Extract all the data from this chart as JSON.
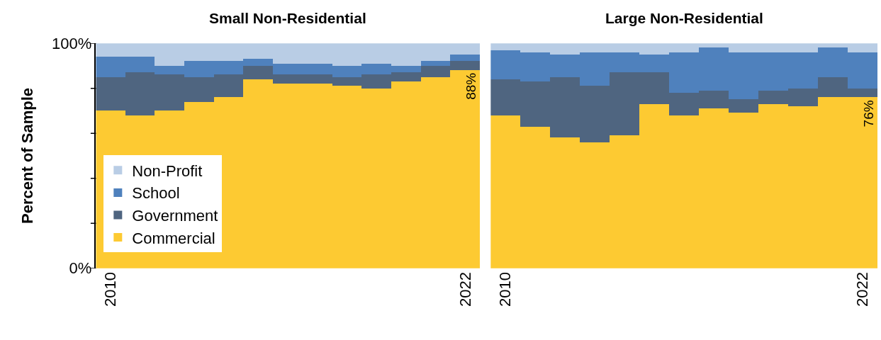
{
  "chart_data": [
    {
      "type": "bar",
      "stacked": true,
      "title": "Small Non-Residential",
      "ylabel": "Percent of Sample",
      "categories": [
        "2010",
        null,
        null,
        null,
        null,
        null,
        null,
        null,
        null,
        null,
        null,
        null,
        "2022"
      ],
      "ylim": [
        0,
        100
      ],
      "yticks": [
        {
          "value": 0,
          "label": "0%"
        },
        {
          "value": 20,
          "label": null
        },
        {
          "value": 40,
          "label": null
        },
        {
          "value": 60,
          "label": null
        },
        {
          "value": 80,
          "label": null
        },
        {
          "value": 100,
          "label": "100%"
        }
      ],
      "series": [
        {
          "name": "Commercial",
          "color": "#fdca32",
          "values": [
            70,
            68,
            70,
            74,
            76,
            84,
            82,
            82,
            81,
            80,
            83,
            85,
            88
          ]
        },
        {
          "name": "Government",
          "color": "#4f6580",
          "values": [
            15,
            19,
            16,
            11,
            10,
            6,
            4,
            4,
            4,
            6,
            4,
            5,
            4
          ]
        },
        {
          "name": "School",
          "color": "#4f81bd",
          "values": [
            9,
            7,
            4,
            7,
            6,
            3,
            5,
            5,
            5,
            5,
            3,
            2,
            3
          ]
        },
        {
          "name": "Non-Profit",
          "color": "#b9cde5",
          "values": [
            6,
            6,
            10,
            8,
            8,
            7,
            9,
            9,
            10,
            9,
            10,
            8,
            5
          ]
        }
      ],
      "annotations": [
        {
          "text": "88%",
          "x": "2022",
          "y": 88
        }
      ],
      "legend": "bottom left"
    },
    {
      "type": "bar",
      "stacked": true,
      "title": "Large Non-Residential",
      "categories": [
        "2010",
        null,
        null,
        null,
        null,
        null,
        null,
        null,
        null,
        null,
        null,
        null,
        "2022"
      ],
      "ylim": [
        0,
        100
      ],
      "series": [
        {
          "color": "#fdca32",
          "values": [
            68,
            63,
            58,
            56,
            59,
            73,
            68,
            71,
            69,
            73,
            72,
            76,
            76
          ]
        },
        {
          "color": "#4f6580",
          "values": [
            16,
            20,
            27,
            25,
            28,
            14,
            10,
            8,
            6,
            6,
            8,
            9,
            4
          ]
        },
        {
          "color": "#4f81bd",
          "values": [
            13,
            13,
            10,
            15,
            9,
            8,
            18,
            19,
            21,
            17,
            16,
            13,
            16
          ]
        },
        {
          "color": "#b9cde5",
          "values": [
            3,
            4,
            5,
            4,
            4,
            5,
            4,
            2,
            4,
            4,
            4,
            2,
            4
          ]
        }
      ],
      "annotations": [
        {
          "text": "76%",
          "x": "2022",
          "y": 76
        }
      ],
      "tick_labels": "x"
    }
  ]
}
